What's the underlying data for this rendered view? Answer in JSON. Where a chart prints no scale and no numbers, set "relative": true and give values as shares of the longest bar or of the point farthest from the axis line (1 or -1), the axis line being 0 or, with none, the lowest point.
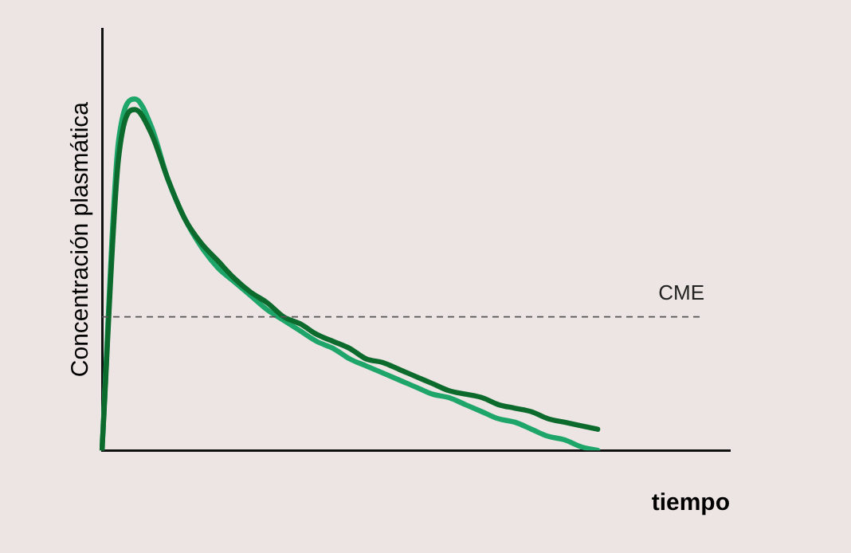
{
  "chart_data": {
    "type": "line",
    "relative": true,
    "xlabel": "tiempo",
    "ylabel": "Concentración plasmática",
    "categories": [
      null,
      null,
      null,
      null,
      null,
      null,
      null,
      null,
      null,
      null,
      null,
      null,
      null,
      null,
      null,
      null,
      null,
      null,
      null,
      null,
      null,
      null,
      null,
      null,
      null,
      null,
      null,
      null,
      null,
      null,
      null,
      null,
      null,
      null,
      null,
      null,
      null,
      null,
      null
    ],
    "series": [
      {
        "color": "#0b6a2c",
        "values": [
          0,
          0.83,
          0.97,
          0.9,
          0.77,
          0.66,
          0.59,
          0.54,
          0.49,
          0.45,
          0.42,
          0.38,
          0.36,
          0.33,
          0.31,
          0.29,
          0.26,
          0.25,
          0.23,
          0.21,
          0.19,
          0.17,
          0.16,
          0.15,
          0.13,
          0.12,
          0.11,
          0.09,
          0.08,
          0.07,
          0.06,
          null,
          null,
          null,
          null,
          null,
          null,
          null,
          null
        ]
      },
      {
        "color": "#1ea56a",
        "values": [
          0,
          0.88,
          1,
          0.92,
          0.77,
          0.66,
          0.58,
          0.52,
          0.48,
          0.44,
          0.4,
          0.37,
          0.34,
          0.31,
          0.29,
          0.26,
          0.24,
          0.22,
          0.2,
          0.18,
          0.16,
          0.15,
          0.13,
          0.11,
          0.09,
          0.08,
          0.06,
          0.04,
          0.03,
          0.01,
          0,
          null,
          null,
          null,
          null,
          null,
          null,
          null,
          null
        ]
      }
    ],
    "ref_lines": [
      {
        "axis": "y",
        "value": 0.38,
        "label": "CME",
        "color": "#555555",
        "line_style": "dashed"
      }
    ],
    "grid": false,
    "legend": false,
    "marker": "none",
    "line_style": "solid"
  }
}
